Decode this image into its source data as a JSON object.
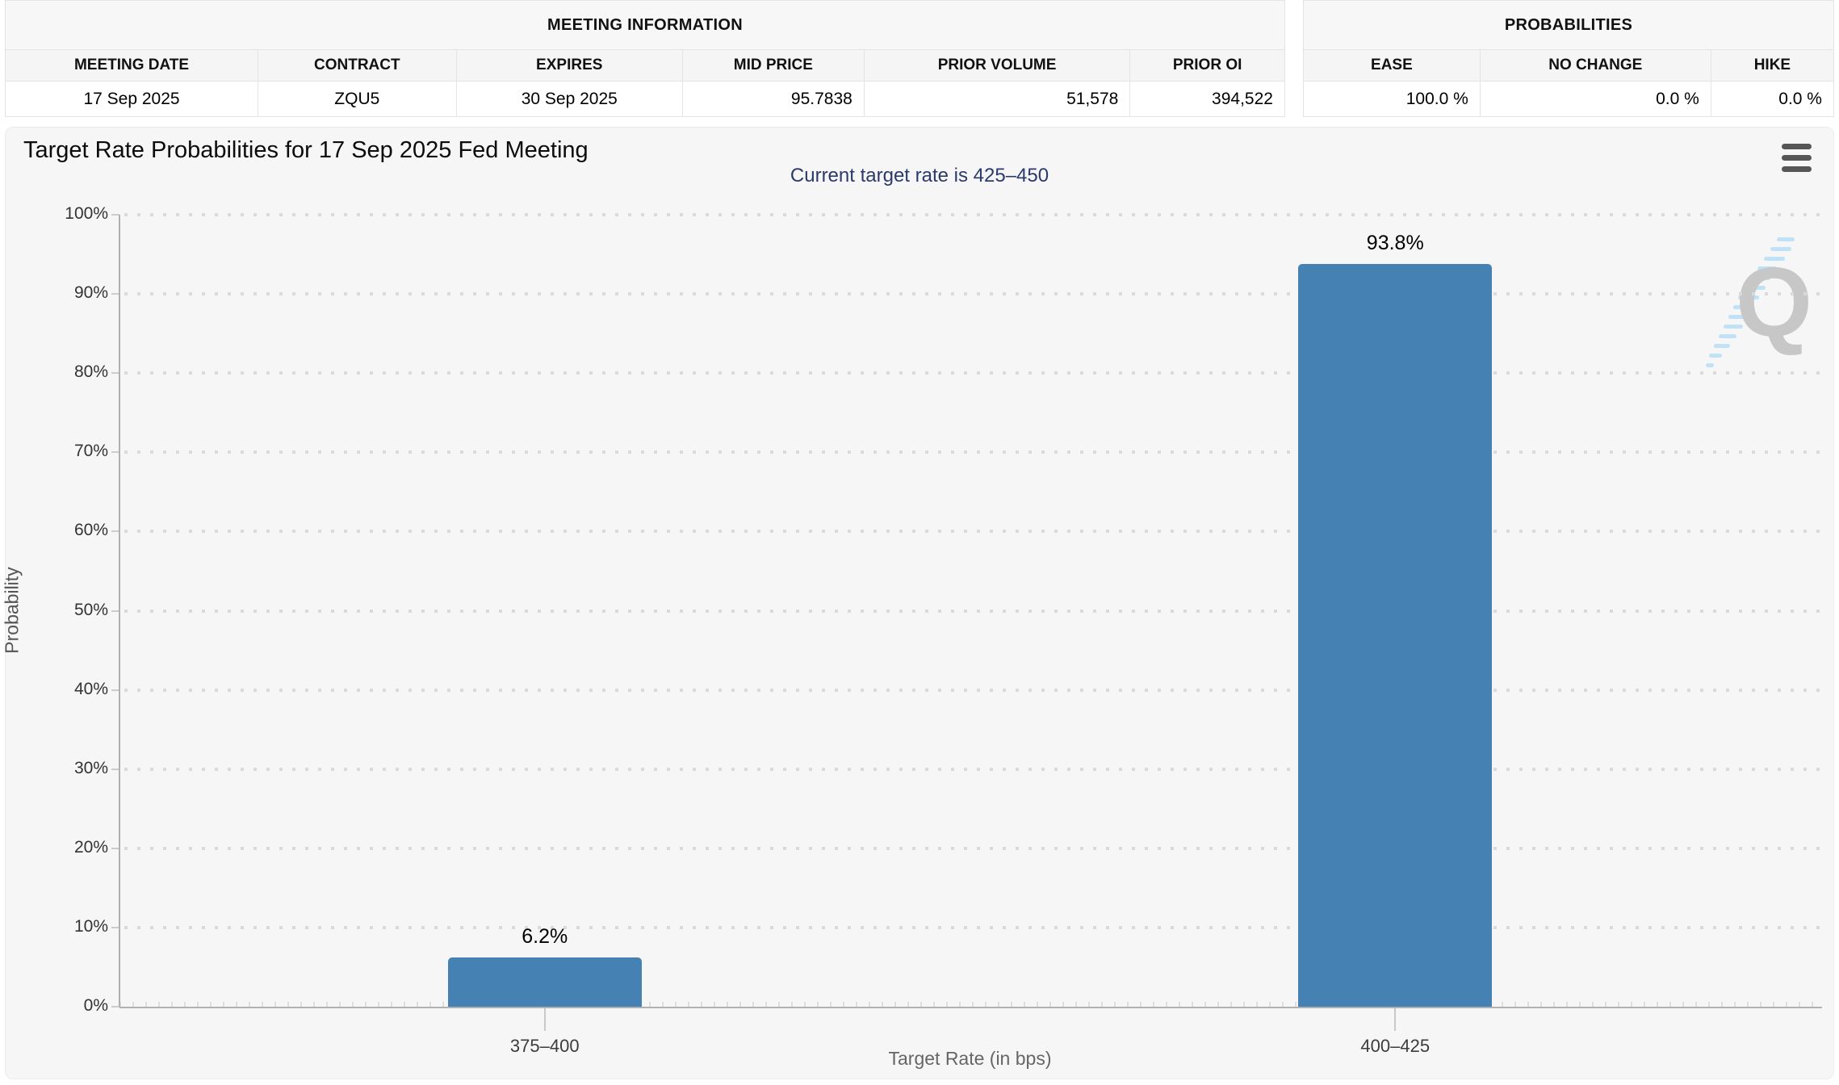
{
  "meeting_info": {
    "title": "MEETING INFORMATION",
    "columns": [
      {
        "label": "MEETING DATE",
        "value": "17 Sep 2025"
      },
      {
        "label": "CONTRACT",
        "value": "ZQU5"
      },
      {
        "label": "EXPIRES",
        "value": "30 Sep 2025"
      },
      {
        "label": "MID PRICE",
        "value": "95.7838"
      },
      {
        "label": "PRIOR VOLUME",
        "value": "51,578"
      },
      {
        "label": "PRIOR OI",
        "value": "394,522"
      }
    ]
  },
  "probabilities": {
    "title": "PROBABILITIES",
    "columns": [
      {
        "label": "EASE",
        "value": "100.0 %"
      },
      {
        "label": "NO CHANGE",
        "value": "0.0 %"
      },
      {
        "label": "HIKE",
        "value": "0.0 %"
      }
    ]
  },
  "chart": {
    "title": "Target Rate Probabilities for 17 Sep 2025 Fed Meeting",
    "subtitle": "Current target rate is 425–450",
    "menu_icon": "hamburger-menu-icon",
    "watermark_letter": "Q"
  },
  "chart_data": {
    "type": "bar",
    "title": "Target Rate Probabilities for 17 Sep 2025 Fed Meeting",
    "subtitle": "Current target rate is 425–450",
    "categories": [
      "375–400",
      "400–425"
    ],
    "values": [
      6.2,
      93.8
    ],
    "bar_labels": [
      "6.2%",
      "93.8%"
    ],
    "xlabel": "Target Rate (in bps)",
    "ylabel": "Probability",
    "ylim": [
      0,
      100
    ],
    "ytick_step": 10,
    "ytick_suffix": "%",
    "grid": "dotted-horizontal",
    "legend": "none",
    "bar_color": "#4681b4",
    "subtitle_color": "#2b3a6b"
  }
}
